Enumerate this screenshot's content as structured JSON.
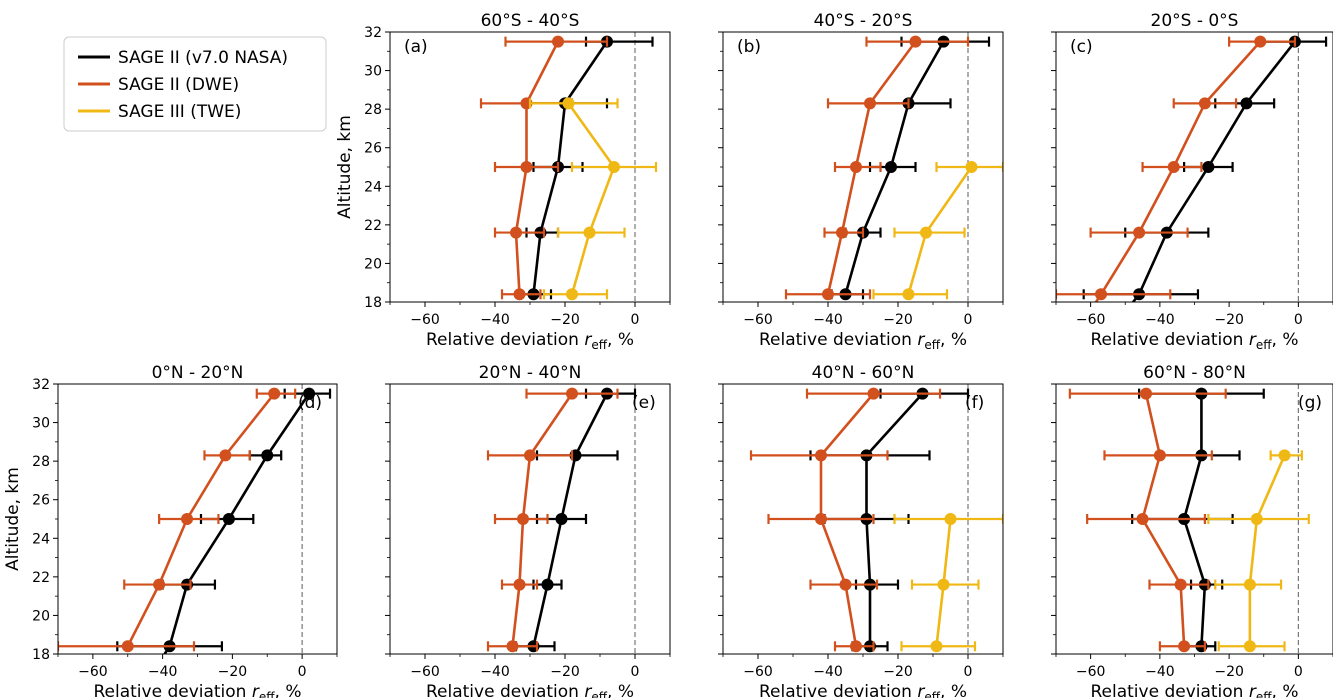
{
  "legend": {
    "entries": [
      {
        "label": "SAGE II (v7.0 NASA)",
        "color": "#000000"
      },
      {
        "label": "SAGE II (DWE)",
        "color": "#d2501e"
      },
      {
        "label": "SAGE III (TWE)",
        "color": "#f0b814"
      }
    ],
    "placement": "top-left"
  },
  "shared_axes": {
    "xlabel": "Relative deviation",
    "xlabel_symbol": "r",
    "xlabel_subscript": "eff",
    "xlabel_unit": ", %",
    "ylabel": "Altitude, km",
    "xlim": [
      -70,
      10
    ],
    "ylim": [
      18,
      32
    ],
    "xticks": [
      -60,
      -40,
      -20,
      0
    ],
    "yticks": [
      18,
      20,
      22,
      24,
      26,
      28,
      30,
      32
    ],
    "reference_line_x": 0
  },
  "chart_data": [
    {
      "type": "line",
      "panel": "(a)",
      "title": "60°S - 40°S",
      "series": [
        {
          "name": "SAGE II (v7.0 NASA)",
          "color": "#000000",
          "y": [
            18.4,
            21.6,
            25,
            28.3,
            31.5
          ],
          "x": [
            -29,
            -27,
            -22,
            -20,
            -8
          ],
          "xerr_low": [
            -33,
            -31,
            -29,
            -31,
            -14
          ],
          "xerr_high": [
            -24,
            -22,
            -15,
            -8,
            5
          ]
        },
        {
          "name": "SAGE II (DWE)",
          "color": "#d2501e",
          "y": [
            18.4,
            21.6,
            25,
            28.3,
            31.5
          ],
          "x": [
            -33,
            -34,
            -31,
            -31,
            -22
          ],
          "xerr_low": [
            -38,
            -40,
            -40,
            -44,
            -37
          ],
          "xerr_high": [
            -27,
            -26,
            -22,
            -18,
            -8
          ]
        },
        {
          "name": "SAGE III (TWE)",
          "color": "#f0b814",
          "y": [
            18.4,
            21.6,
            25,
            28.3
          ],
          "x": [
            -18,
            -13,
            -6,
            -19
          ],
          "xerr_low": [
            -26,
            -22,
            -18,
            -30
          ],
          "xerr_high": [
            -8,
            -3,
            6,
            -5
          ]
        }
      ]
    },
    {
      "type": "line",
      "panel": "(b)",
      "title": "40°S - 20°S",
      "series": [
        {
          "name": "SAGE II (v7.0 NASA)",
          "color": "#000000",
          "y": [
            18.4,
            21.6,
            25,
            28.3,
            31.5
          ],
          "x": [
            -35,
            -30,
            -22,
            -17,
            -7
          ],
          "xerr_low": [
            -39,
            -35,
            -28,
            -28,
            -19
          ],
          "xerr_high": [
            -30,
            -25,
            -15,
            -5,
            6
          ]
        },
        {
          "name": "SAGE II (DWE)",
          "color": "#d2501e",
          "y": [
            18.4,
            21.6,
            25,
            28.3,
            31.5
          ],
          "x": [
            -40,
            -36,
            -32,
            -28,
            -15
          ],
          "xerr_low": [
            -52,
            -41,
            -38,
            -40,
            -29
          ],
          "xerr_high": [
            -28,
            -30,
            -25,
            -17,
            0
          ]
        },
        {
          "name": "SAGE III (TWE)",
          "color": "#f0b814",
          "y": [
            18.4,
            21.6,
            25
          ],
          "x": [
            -17,
            -12,
            1
          ],
          "xerr_low": [
            -27,
            -21,
            -9
          ],
          "xerr_high": [
            -6,
            -1,
            10
          ]
        }
      ]
    },
    {
      "type": "line",
      "panel": "(c)",
      "title": "20°S - 0°S",
      "series": [
        {
          "name": "SAGE II (v7.0 NASA)",
          "color": "#000000",
          "y": [
            17,
            18.4,
            21.6,
            25,
            28.3,
            31.5
          ],
          "x": [
            -52,
            -46,
            -38,
            -26,
            -15,
            -1
          ],
          "xerr_low": [
            null,
            -62,
            -50,
            -33,
            -24,
            -11
          ],
          "xerr_high": [
            null,
            -29,
            -26,
            -19,
            -7,
            8
          ]
        },
        {
          "name": "SAGE II (DWE)",
          "color": "#d2501e",
          "y": [
            17,
            18.4,
            21.6,
            25,
            28.3,
            31.5
          ],
          "x": [
            -62,
            -57,
            -46,
            -36,
            -27,
            -11
          ],
          "xerr_low": [
            null,
            -70,
            -60,
            -45,
            -36,
            -20
          ],
          "xerr_high": [
            null,
            -37,
            -32,
            -28,
            -18,
            -1
          ]
        }
      ]
    },
    {
      "type": "line",
      "panel": "(d)",
      "title": "0°N - 20°N",
      "series": [
        {
          "name": "SAGE II (v7.0 NASA)",
          "color": "#000000",
          "y": [
            17,
            18.4,
            21.6,
            25,
            28.3,
            31.5
          ],
          "x": [
            -43,
            -38,
            -33,
            -21,
            -10,
            2
          ],
          "xerr_low": [
            null,
            -53,
            -40,
            -29,
            -15,
            -5
          ],
          "xerr_high": [
            null,
            -23,
            -25,
            -14,
            -6,
            8
          ]
        },
        {
          "name": "SAGE II (DWE)",
          "color": "#d2501e",
          "y": [
            18.4,
            21.6,
            25,
            28.3,
            31.5
          ],
          "x": [
            -50,
            -41,
            -33,
            -22,
            -8
          ],
          "xerr_low": [
            -70,
            -51,
            -41,
            -28,
            -13
          ],
          "xerr_high": [
            -31,
            -32,
            -24,
            -15,
            -2
          ]
        }
      ]
    },
    {
      "type": "line",
      "panel": "(e)",
      "title": "20°N - 40°N",
      "series": [
        {
          "name": "SAGE II (v7.0 NASA)",
          "color": "#000000",
          "y": [
            18.4,
            21.6,
            25,
            28.3,
            31.5
          ],
          "x": [
            -29,
            -25,
            -21,
            -17,
            -8
          ],
          "xerr_low": [
            -34,
            -29,
            -28,
            -28,
            -14
          ],
          "xerr_high": [
            -23,
            -21,
            -14,
            -5,
            0
          ]
        },
        {
          "name": "SAGE II (DWE)",
          "color": "#d2501e",
          "y": [
            18.4,
            21.6,
            25,
            28.3,
            31.5
          ],
          "x": [
            -35,
            -33,
            -32,
            -30,
            -18
          ],
          "xerr_low": [
            -42,
            -38,
            -40,
            -42,
            -31
          ],
          "xerr_high": [
            -28,
            -28,
            -25,
            -18,
            -5
          ]
        }
      ]
    },
    {
      "type": "line",
      "panel": "(f)",
      "title": "40°N - 60°N",
      "series": [
        {
          "name": "SAGE II (v7.0 NASA)",
          "color": "#000000",
          "y": [
            18.4,
            21.6,
            25,
            28.3,
            31.5
          ],
          "x": [
            -28,
            -28,
            -29,
            -29,
            -13
          ],
          "xerr_low": [
            -33,
            -32,
            -41,
            -45,
            -25
          ],
          "xerr_high": [
            -23,
            -20,
            -17,
            -11,
            0
          ]
        },
        {
          "name": "SAGE II (DWE)",
          "color": "#d2501e",
          "y": [
            18.4,
            21.6,
            25,
            28.3,
            31.5
          ],
          "x": [
            -32,
            -35,
            -42,
            -42,
            -27
          ],
          "xerr_low": [
            -38,
            -45,
            -57,
            -62,
            -46
          ],
          "xerr_high": [
            -27,
            -26,
            -27,
            -23,
            -8
          ]
        },
        {
          "name": "SAGE III (TWE)",
          "color": "#f0b814",
          "y": [
            18.4,
            21.6,
            25
          ],
          "x": [
            -9,
            -7,
            -5
          ],
          "xerr_low": [
            -19,
            -16,
            -21
          ],
          "xerr_high": [
            2,
            3,
            10
          ]
        }
      ]
    },
    {
      "type": "line",
      "panel": "(g)",
      "title": "60°N - 80°N",
      "series": [
        {
          "name": "SAGE II (v7.0 NASA)",
          "color": "#000000",
          "y": [
            18.4,
            21.6,
            25,
            28.3,
            31.5
          ],
          "x": [
            -28,
            -27,
            -33,
            -28,
            -28
          ],
          "xerr_low": [
            -33,
            -31,
            -48,
            -40,
            -46
          ],
          "xerr_high": [
            -24,
            -22,
            -19,
            -17,
            -10
          ]
        },
        {
          "name": "SAGE II (DWE)",
          "color": "#d2501e",
          "y": [
            18.4,
            21.6,
            25,
            28.3,
            31.5
          ],
          "x": [
            -33,
            -34,
            -45,
            -40,
            -44
          ],
          "xerr_low": [
            -40,
            -43,
            -61,
            -56,
            -66
          ],
          "xerr_high": [
            -27,
            -26,
            -27,
            -25,
            -21
          ]
        },
        {
          "name": "SAGE III (TWE)",
          "color": "#f0b814",
          "y": [
            18.4,
            21.6,
            25,
            28.3
          ],
          "x": [
            -14,
            -14,
            -12,
            -4
          ],
          "xerr_low": [
            -23,
            -24,
            -26,
            -8
          ],
          "xerr_high": [
            -4,
            -5,
            3,
            1
          ]
        }
      ]
    }
  ]
}
